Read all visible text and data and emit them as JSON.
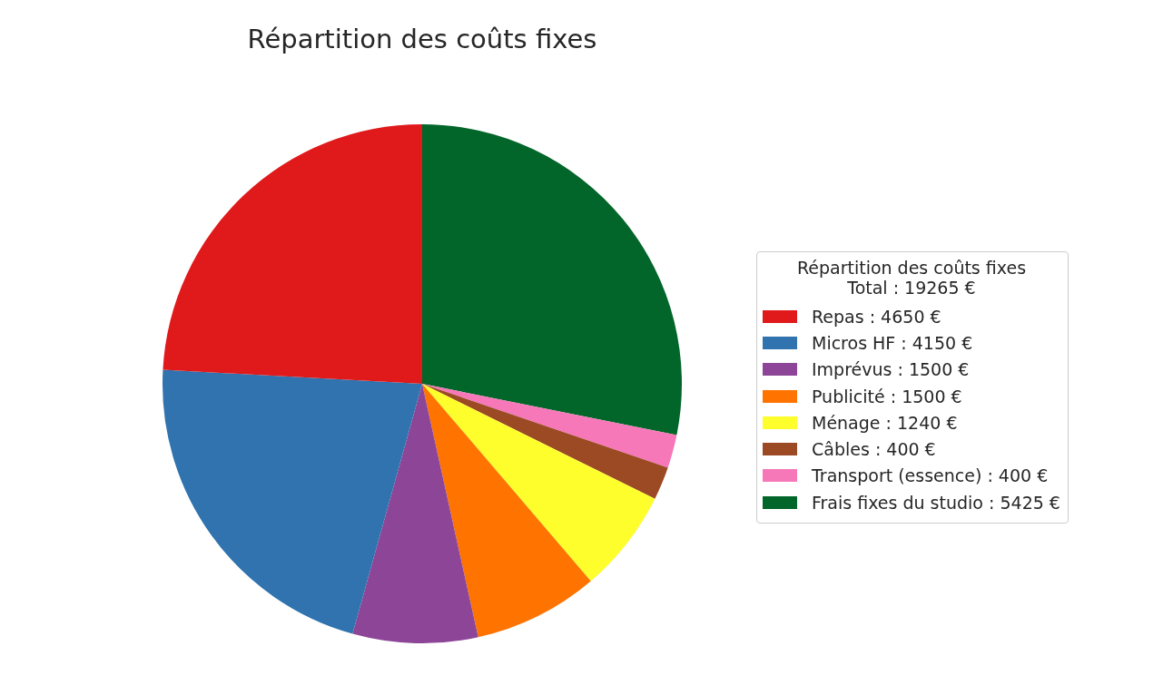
{
  "chart_data": {
    "type": "pie",
    "title": "Répartition des coûts fixes",
    "legend_title": "Répartition des coûts fixes\nTotal : 19265 €",
    "categories": [
      "Repas : 4650 €",
      "Micros HF : 4150 €",
      "Imprévus : 1500 €",
      "Publicité : 1500 €",
      "Ménage : 1240 €",
      "Câbles : 400 €",
      "Transport (essence) : 400 €",
      "Frais fixes du studio : 5425 €"
    ],
    "values": [
      4650,
      4150,
      1500,
      1500,
      1240,
      400,
      400,
      5425
    ],
    "colors": [
      "#e0191b",
      "#3073ae",
      "#8d4598",
      "#ff7300",
      "#fefe2c",
      "#9b4a24",
      "#f678b8",
      "#026529"
    ],
    "legend": "right"
  }
}
